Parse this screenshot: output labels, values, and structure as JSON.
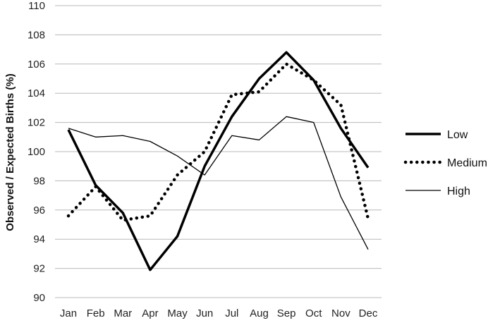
{
  "chart_data": {
    "type": "line",
    "title": "",
    "xlabel": "",
    "ylabel": "Observed / Expected Births (%)",
    "ylim": [
      90,
      110
    ],
    "yticks": [
      90,
      92,
      94,
      96,
      98,
      100,
      102,
      104,
      106,
      108,
      110
    ],
    "grid": true,
    "legend_position": "right",
    "categories": [
      "Jan",
      "Feb",
      "Mar",
      "Apr",
      "May",
      "Jun",
      "Jul",
      "Aug",
      "Sep",
      "Oct",
      "Nov",
      "Dec"
    ],
    "series": [
      {
        "name": "Low",
        "style": "solid-thick",
        "color": "#000000",
        "values": [
          101.5,
          97.7,
          95.8,
          91.9,
          94.2,
          99.0,
          102.4,
          105.0,
          106.8,
          104.9,
          101.6,
          98.9
        ]
      },
      {
        "name": "Medium",
        "style": "dotted",
        "color": "#000000",
        "values": [
          95.6,
          97.6,
          95.3,
          95.6,
          98.4,
          100.0,
          103.9,
          104.1,
          106.0,
          104.9,
          103.2,
          95.4
        ]
      },
      {
        "name": "High",
        "style": "solid-thin",
        "color": "#000000",
        "values": [
          101.6,
          101.0,
          101.1,
          100.7,
          99.7,
          98.4,
          101.1,
          100.8,
          102.4,
          102.0,
          96.9,
          93.3
        ]
      }
    ]
  }
}
